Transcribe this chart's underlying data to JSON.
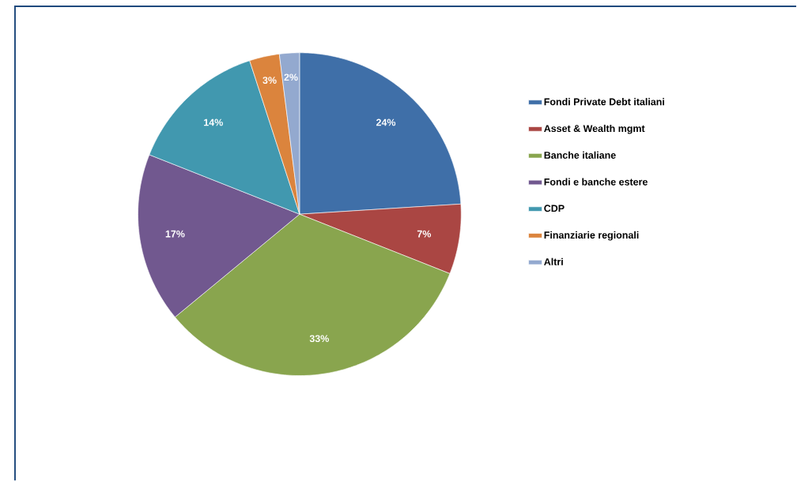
{
  "chart_data": {
    "type": "pie",
    "categories": [
      "Fondi Private Debt italiani",
      "Asset & Wealth mgmt",
      "Banche italiane",
      "Fondi e banche estere",
      "CDP",
      "Finanziarie regionali",
      "Altri"
    ],
    "values": [
      24,
      7,
      33,
      17,
      14,
      3,
      2
    ],
    "colors": [
      "#3f6fa8",
      "#aa4643",
      "#89a54e",
      "#71588f",
      "#4198af",
      "#db843d",
      "#93a9cf"
    ],
    "value_labels": [
      "24%",
      "7%",
      "33%",
      "17%",
      "14%",
      "3%",
      "2%"
    ],
    "legend": "right"
  }
}
